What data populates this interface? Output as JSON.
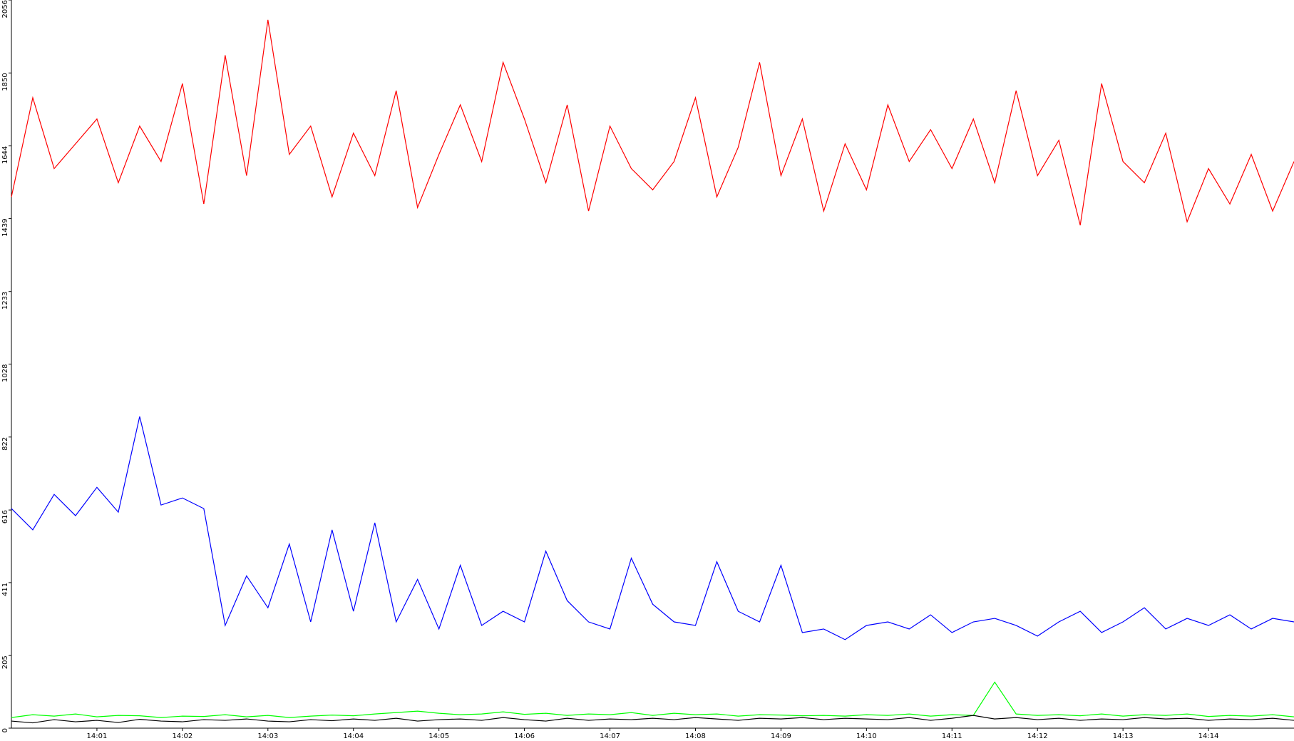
{
  "chart_data": {
    "type": "line",
    "x": [
      0,
      0.25,
      0.5,
      0.75,
      1,
      1.25,
      1.5,
      1.75,
      2,
      2.25,
      2.5,
      2.75,
      3,
      3.25,
      3.5,
      3.75,
      4,
      4.25,
      4.5,
      4.75,
      5,
      5.25,
      5.5,
      5.75,
      6,
      6.25,
      6.5,
      6.75,
      7,
      7.25,
      7.5,
      7.75,
      8,
      8.25,
      8.5,
      8.75,
      9,
      9.25,
      9.5,
      9.75,
      10,
      10.25,
      10.5,
      10.75,
      11,
      11.25,
      11.5,
      11.75,
      12,
      12.25,
      12.5,
      12.75,
      13,
      13.25,
      13.5,
      13.75,
      14,
      14.25,
      14.5,
      14.75,
      15
    ],
    "series": [
      {
        "color": "#ff0000",
        "values": [
          1500,
          1780,
          1580,
          1650,
          1720,
          1540,
          1700,
          1600,
          1820,
          1480,
          1900,
          1560,
          2000,
          1620,
          1700,
          1500,
          1680,
          1560,
          1800,
          1470,
          1620,
          1760,
          1600,
          1880,
          1720,
          1540,
          1760,
          1460,
          1700,
          1580,
          1520,
          1600,
          1780,
          1500,
          1640,
          1880,
          1560,
          1720,
          1460,
          1650,
          1520,
          1760,
          1600,
          1690,
          1580,
          1720,
          1540,
          1800,
          1560,
          1660,
          1420,
          1820,
          1600,
          1540,
          1680,
          1430,
          1580,
          1480,
          1620,
          1460,
          1600
        ]
      },
      {
        "color": "#0000ff",
        "values": [
          620,
          560,
          660,
          600,
          680,
          610,
          880,
          630,
          650,
          620,
          290,
          430,
          340,
          520,
          300,
          560,
          330,
          580,
          300,
          420,
          280,
          460,
          290,
          330,
          300,
          500,
          360,
          300,
          280,
          480,
          350,
          300,
          290,
          470,
          330,
          300,
          460,
          270,
          280,
          250,
          290,
          300,
          280,
          320,
          270,
          300,
          310,
          290,
          260,
          300,
          330,
          270,
          300,
          340,
          280,
          310,
          290,
          320,
          280,
          310,
          300
        ]
      },
      {
        "color": "#00ff00",
        "values": [
          30,
          38,
          34,
          40,
          32,
          36,
          35,
          30,
          34,
          33,
          38,
          32,
          36,
          30,
          34,
          37,
          35,
          40,
          44,
          48,
          42,
          38,
          40,
          46,
          39,
          42,
          36,
          40,
          38,
          44,
          36,
          42,
          38,
          40,
          34,
          38,
          37,
          35,
          36,
          34,
          38,
          36,
          40,
          34,
          38,
          36,
          130,
          40,
          36,
          38,
          35,
          40,
          34,
          38,
          36,
          40,
          33,
          36,
          34,
          38,
          32
        ]
      },
      {
        "color": "#000000",
        "values": [
          20,
          15,
          24,
          18,
          22,
          16,
          25,
          20,
          18,
          24,
          22,
          26,
          20,
          18,
          24,
          21,
          26,
          22,
          28,
          20,
          24,
          26,
          22,
          30,
          24,
          20,
          28,
          22,
          26,
          24,
          28,
          24,
          30,
          26,
          22,
          28,
          26,
          30,
          24,
          28,
          26,
          24,
          30,
          22,
          28,
          36,
          26,
          30,
          24,
          28,
          22,
          26,
          24,
          30,
          26,
          28,
          22,
          26,
          24,
          28,
          22
        ]
      }
    ],
    "xlim": [
      0,
      15
    ],
    "xticks": [
      {
        "value": 1,
        "label": "14:01"
      },
      {
        "value": 2,
        "label": "14:02"
      },
      {
        "value": 3,
        "label": "14:03"
      },
      {
        "value": 4,
        "label": "14:04"
      },
      {
        "value": 5,
        "label": "14:05"
      },
      {
        "value": 6,
        "label": "14:06"
      },
      {
        "value": 7,
        "label": "14:07"
      },
      {
        "value": 8,
        "label": "14:08"
      },
      {
        "value": 9,
        "label": "14:09"
      },
      {
        "value": 10,
        "label": "14:10"
      },
      {
        "value": 11,
        "label": "14:11"
      },
      {
        "value": 12,
        "label": "14:12"
      },
      {
        "value": 13,
        "label": "14:13"
      },
      {
        "value": 14,
        "label": "14:14"
      }
    ],
    "ylim": [
      0,
      2056
    ],
    "yticks": [
      0,
      205,
      411,
      616,
      822,
      1028,
      1233,
      1439,
      1644,
      1850,
      2056
    ],
    "grid": false
  }
}
